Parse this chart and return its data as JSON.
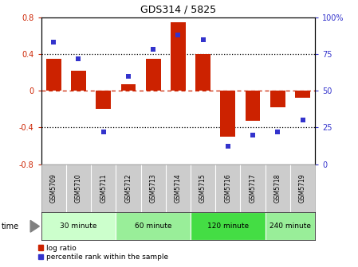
{
  "title": "GDS314 / 5825",
  "samples": [
    "GSM5709",
    "GSM5710",
    "GSM5711",
    "GSM5712",
    "GSM5713",
    "GSM5714",
    "GSM5715",
    "GSM5716",
    "GSM5717",
    "GSM5718",
    "GSM5719"
  ],
  "log_ratio": [
    0.35,
    0.22,
    -0.2,
    0.07,
    0.35,
    0.75,
    0.4,
    -0.5,
    -0.33,
    -0.18,
    -0.08
  ],
  "percentile": [
    83,
    72,
    22,
    60,
    78,
    88,
    85,
    12,
    20,
    22,
    30
  ],
  "bar_color": "#cc2200",
  "dot_color": "#3333cc",
  "ylim": [
    -0.8,
    0.8
  ],
  "y2lim": [
    0,
    100
  ],
  "yticks": [
    -0.8,
    -0.4,
    0.0,
    0.4,
    0.8
  ],
  "y2ticks": [
    0,
    25,
    50,
    75,
    100
  ],
  "groups": [
    {
      "label": "30 minute",
      "start": 0,
      "end": 3,
      "color": "#ccffcc"
    },
    {
      "label": "60 minute",
      "start": 3,
      "end": 6,
      "color": "#99ee99"
    },
    {
      "label": "120 minute",
      "start": 6,
      "end": 9,
      "color": "#44dd44"
    },
    {
      "label": "240 minute",
      "start": 9,
      "end": 11,
      "color": "#99ee99"
    }
  ],
  "legend_log_ratio": "log ratio",
  "legend_percentile": "percentile rank within the sample",
  "time_label": "time",
  "bg_color": "#ffffff",
  "plot_bg": "#ffffff",
  "tick_row_bg": "#cccccc",
  "tick_row_border": "#999999"
}
